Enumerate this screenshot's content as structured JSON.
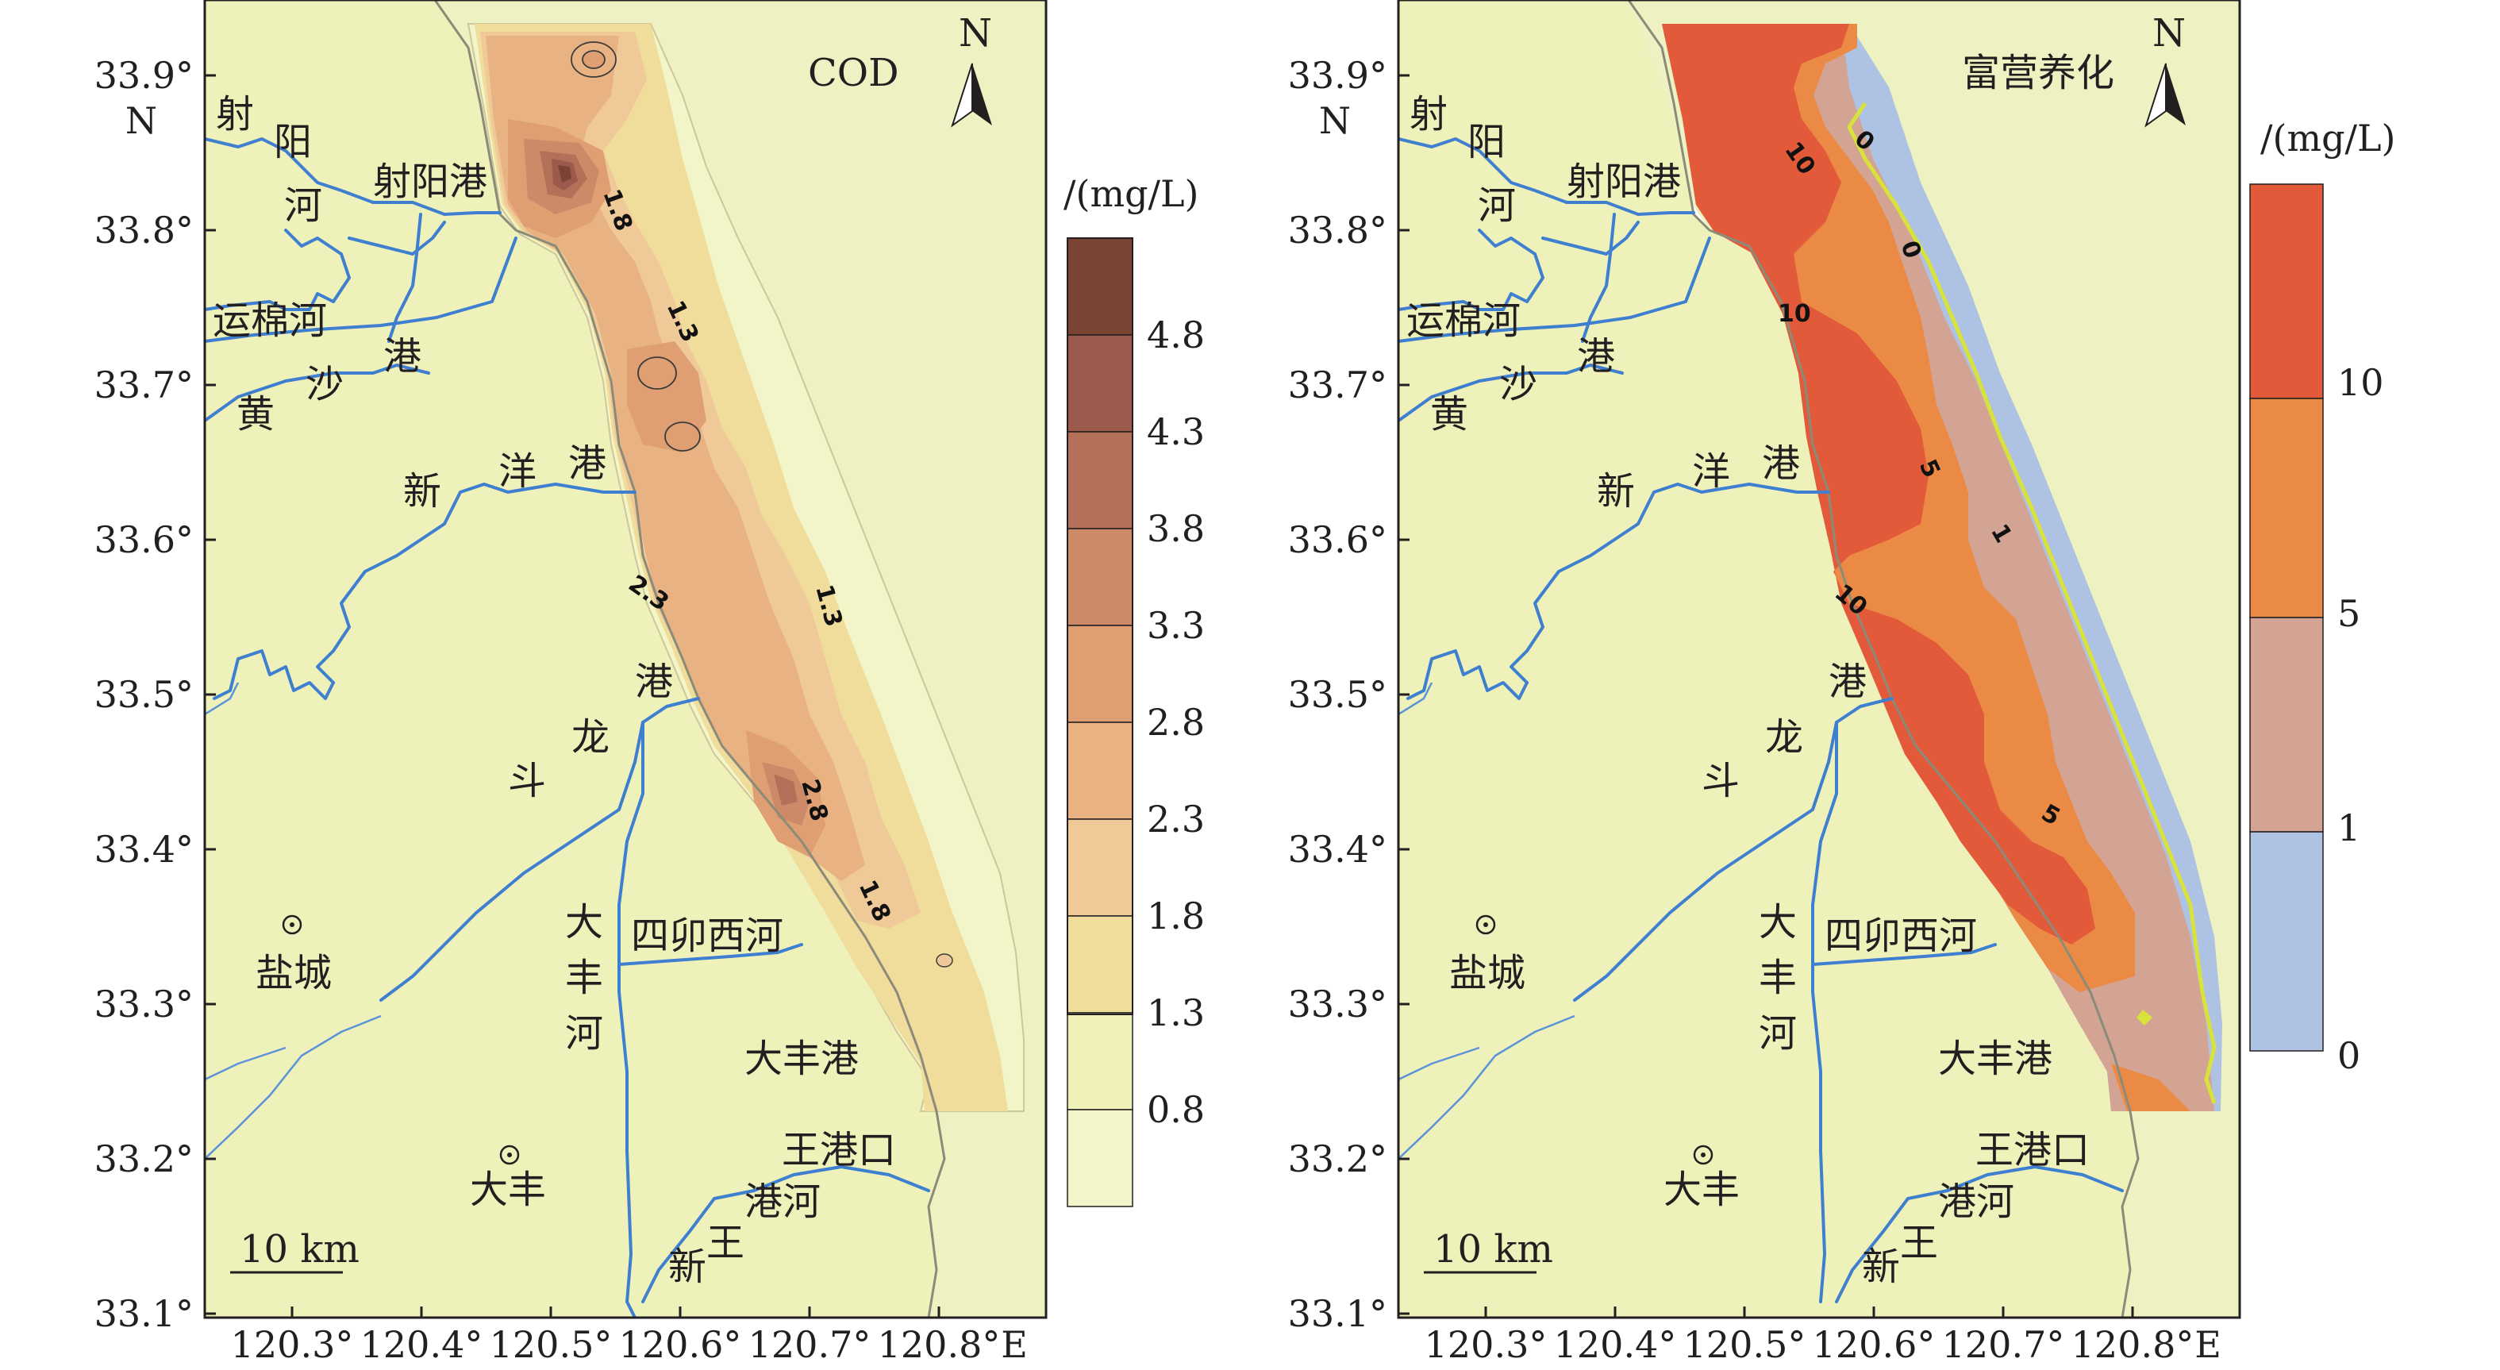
{
  "panels": [
    {
      "title": "COD",
      "legend": {
        "unit": "/(mg/L)",
        "labels": [
          "4.8",
          "4.3",
          "3.8",
          "3.3",
          "2.8",
          "2.3",
          "1.8",
          "1.3",
          "0.8"
        ],
        "colors": [
          "#7a4433",
          "#9b5a4b",
          "#b5705a",
          "#cc8a68",
          "#df9f72",
          "#e8b282",
          "#efc997",
          "#f0dc9b",
          "#f0f1b8",
          "#f2f5c8"
        ]
      },
      "contour_labels": [
        "1.8",
        "1.3",
        "1.3",
        "2.3",
        "2.8",
        "1.8"
      ],
      "places": {
        "sheyang_he_1": "射",
        "sheyang_he_2": "阳",
        "sheyang_he_3": "河",
        "sheyang_port": "射阳港",
        "yunmian_he": "运棉河",
        "huangshagang_1": "黄",
        "huangshagang_2": "沙",
        "huangshagang_3": "港",
        "xinyanggang_1": "新",
        "xinyanggang_2": "洋",
        "xinyanggang_3": "港",
        "doulonggang_1": "港",
        "doulonggang_2": "龙",
        "doulonggang_3": "斗",
        "yancheng": "盐城",
        "dafeng_he_1": "大",
        "dafeng_he_2": "丰",
        "dafeng_he_3": "河",
        "simaoxi_he": "四卯西河",
        "dafeng_port": "大丰港",
        "wanggang_kou": "王港口",
        "gang_he": "港河",
        "wang": "王",
        "xin": "新",
        "dafeng_city": "大丰"
      },
      "scale_bar": "10 km",
      "north_label": "N"
    },
    {
      "title": "富营养化",
      "legend": {
        "unit": "/(mg/L)",
        "labels": [
          "10",
          "5",
          "1",
          "0"
        ],
        "colors": [
          "#e25a3a",
          "#eb8a44",
          "#d3a494",
          "#aec2e3"
        ]
      },
      "contour_labels": [
        "0",
        "0",
        "10",
        "10",
        "5",
        "1",
        "10",
        "5"
      ],
      "places": {
        "sheyang_he_1": "射",
        "sheyang_he_2": "阳",
        "sheyang_he_3": "河",
        "sheyang_port": "射阳港",
        "yunmian_he": "运棉河",
        "huangshagang_1": "黄",
        "huangshagang_2": "沙",
        "huangshagang_3": "港",
        "xinyanggang_1": "新",
        "xinyanggang_2": "洋",
        "xinyanggang_3": "港",
        "doulonggang_1": "港",
        "doulonggang_2": "龙",
        "doulonggang_3": "斗",
        "yancheng": "盐城",
        "dafeng_he_1": "大",
        "dafeng_he_2": "丰",
        "dafeng_he_3": "河",
        "simaoxi_he": "四卯西河",
        "dafeng_port": "大丰港",
        "wanggang_kou": "王港口",
        "gang_he": "港河",
        "wang": "王",
        "xin": "新",
        "dafeng_city": "大丰"
      },
      "scale_bar": "10 km",
      "north_label": "N"
    }
  ],
  "axes": {
    "lat_labels": [
      "33.9°",
      "33.8°",
      "33.7°",
      "33.6°",
      "33.5°",
      "33.4°",
      "33.3°",
      "33.2°",
      "33.1°"
    ],
    "lat_hemisphere": "N",
    "lon_labels": [
      "120.3°",
      "120.4°",
      "120.5°",
      "120.6°",
      "120.7°",
      "120.8°"
    ],
    "lon_hemisphere": "E"
  }
}
